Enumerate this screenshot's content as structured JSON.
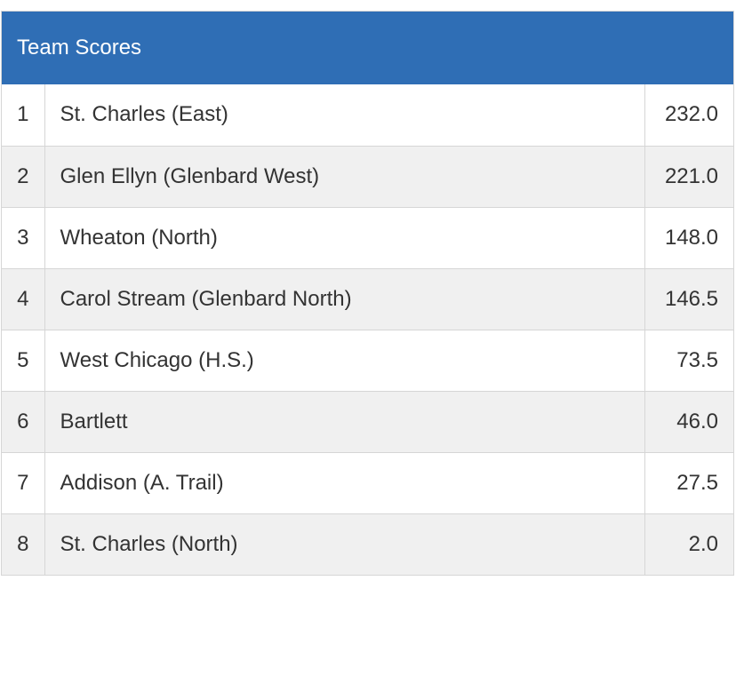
{
  "panel": {
    "title": "Team Scores"
  },
  "colors": {
    "header_bg": "#2f6eb5",
    "header_text": "#ffffff",
    "row_alt_bg": "#f0f0f0",
    "border": "#d6d6d6",
    "text": "#333333"
  },
  "rows": [
    {
      "rank": "1",
      "team": "St. Charles (East)",
      "score": "232.0"
    },
    {
      "rank": "2",
      "team": "Glen Ellyn (Glenbard West)",
      "score": "221.0"
    },
    {
      "rank": "3",
      "team": "Wheaton (North)",
      "score": "148.0"
    },
    {
      "rank": "4",
      "team": "Carol Stream (Glenbard North)",
      "score": "146.5"
    },
    {
      "rank": "5",
      "team": "West Chicago (H.S.)",
      "score": "73.5"
    },
    {
      "rank": "6",
      "team": "Bartlett",
      "score": "46.0"
    },
    {
      "rank": "7",
      "team": "Addison (A. Trail)",
      "score": "27.5"
    },
    {
      "rank": "8",
      "team": "St. Charles (North)",
      "score": "2.0"
    }
  ]
}
